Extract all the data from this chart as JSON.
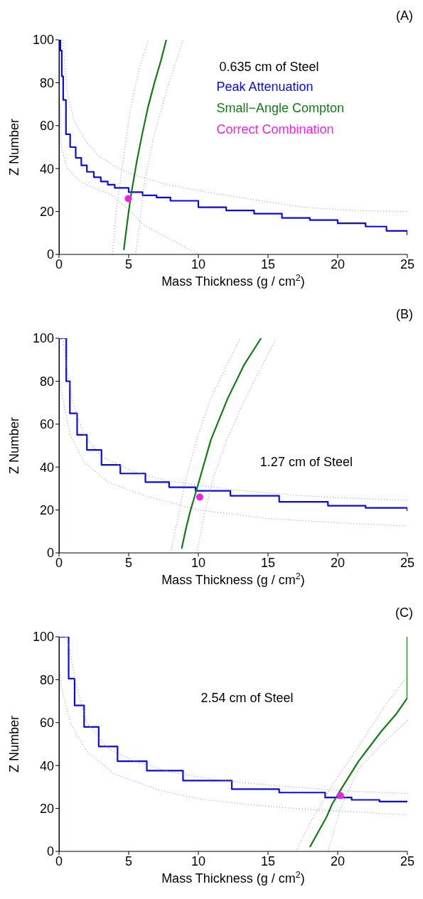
{
  "chart_data": [
    {
      "type": "line",
      "title": "(A)",
      "xlabel": "Mass Thickness (g / cm$^{2}$)",
      "ylabel": "Z Number",
      "xlim": [
        0,
        25
      ],
      "xticks": [
        0,
        5,
        10,
        15,
        20,
        25
      ],
      "ylim": [
        0,
        100
      ],
      "yticks": [
        0,
        20,
        40,
        60,
        80,
        100
      ],
      "annotations": [
        "0.635 cm of Steel"
      ],
      "legend": "top right",
      "series": [
        {
          "name": "Peak Attenuation",
          "type": "step",
          "color": "#0a0ae6",
          "x": [
            0,
            0,
            0.05,
            0.1,
            0.2,
            0.3,
            0.5,
            0.8,
            1.2,
            1.6,
            2,
            2.5,
            3,
            3.5,
            4,
            5,
            6,
            7,
            8,
            10,
            12,
            14,
            16,
            18,
            20,
            22,
            23.5,
            25
          ],
          "values": [
            0,
            100,
            100,
            95,
            83,
            72,
            56,
            50,
            45,
            41.5,
            38.5,
            36,
            34,
            32.5,
            31,
            29,
            27.5,
            26.5,
            25,
            22,
            20.5,
            19,
            17,
            16,
            14.5,
            13,
            11,
            9
          ]
        },
        {
          "type": "line",
          "line_style": "dotted",
          "color": "#9a9ab4",
          "x": [
            0.26,
            0.6,
            1.1,
            2,
            2.85,
            4,
            5.4,
            7.5,
            10.6,
            14,
            17.5,
            21,
            25
          ],
          "values": [
            100,
            75,
            62,
            52,
            46,
            41,
            37,
            33,
            29,
            25.5,
            22,
            20.5,
            20
          ]
        },
        {
          "type": "line",
          "line_style": "dotted",
          "color": "#9a9ab4",
          "x": [
            0.1,
            0.17,
            0.6,
            1.5,
            2.5,
            3.7,
            5,
            6,
            8,
            10
          ],
          "values": [
            70,
            50,
            40,
            34,
            31,
            28,
            21,
            14,
            7,
            0
          ]
        },
        {
          "name": "Small−Angle Compton",
          "type": "line",
          "color": "#127c12",
          "x": [
            4.65,
            4.84,
            5,
            5.2,
            5.6,
            6,
            6.4,
            6.85,
            7.3,
            7.7
          ],
          "values": [
            2,
            12,
            20,
            29,
            44,
            57,
            69,
            80,
            90,
            100
          ]
        },
        {
          "type": "line",
          "line_style": "dotted",
          "color": "#9a9ab4",
          "x": [
            3.85,
            4.1,
            4.5,
            5.1,
            5.7,
            6.4
          ],
          "values": [
            0,
            20,
            39,
            67,
            85,
            100
          ]
        },
        {
          "type": "line",
          "line_style": "dotted",
          "color": "#9a9ab4",
          "x": [
            5.5,
            5.8,
            6.1,
            6.8,
            7.8,
            8.9
          ],
          "values": [
            0,
            15,
            32,
            55,
            78,
            100
          ]
        },
        {
          "name": "Correct Combination",
          "type": "scatter",
          "color": "#ee22ee",
          "x": [
            4.97
          ],
          "values": [
            26
          ]
        }
      ]
    },
    {
      "type": "line",
      "title": "(B)",
      "xlabel": "Mass Thickness (g / cm$^{2}$)",
      "ylabel": "Z Number",
      "xlim": [
        0,
        25
      ],
      "xticks": [
        0,
        5,
        10,
        15,
        20,
        25
      ],
      "ylim": [
        0,
        100
      ],
      "yticks": [
        0,
        20,
        40,
        60,
        80,
        100
      ],
      "annotations": [
        "1.27 cm of Steel"
      ],
      "series": [
        {
          "type": "step",
          "color": "#0a0ae6",
          "x": [
            0,
            0,
            0.25,
            0.52,
            0.78,
            1.3,
            2,
            3.05,
            4.4,
            6.2,
            7.9,
            9.8,
            12.3,
            15.8,
            19.3,
            22,
            25
          ],
          "values": [
            0,
            100,
            100,
            80,
            65,
            55,
            48,
            41,
            37,
            33,
            30.6,
            28.9,
            26.6,
            23.8,
            22,
            21,
            19.5
          ]
        },
        {
          "type": "line",
          "line_style": "dotted",
          "color": "#9a9ab4",
          "x": [
            0.3,
            0.45,
            1,
            1.8,
            3,
            5.3,
            7.5,
            10.5,
            14,
            17.5,
            21,
            25
          ],
          "values": [
            100,
            91,
            70,
            55,
            45,
            38,
            34,
            31,
            28.5,
            26.6,
            25.5,
            24.5
          ]
        },
        {
          "type": "line",
          "line_style": "dotted",
          "color": "#9a9ab4",
          "x": [
            0.1,
            0.26,
            0.8,
            1.8,
            3.5,
            6.2,
            10,
            15,
            20,
            25
          ],
          "values": [
            80,
            72,
            55,
            42.5,
            33,
            26.6,
            20,
            16,
            14,
            12.5
          ]
        },
        {
          "type": "line",
          "color": "#127c12",
          "x": [
            8.8,
            9.1,
            9.4,
            9.85,
            10.9,
            12.1,
            13.3,
            14.5
          ],
          "values": [
            2,
            11,
            19,
            28.9,
            52.7,
            71.9,
            87.8,
            100
          ]
        },
        {
          "type": "line",
          "line_style": "dotted",
          "color": "#9a9ab4",
          "x": [
            8,
            8.5,
            9.1,
            10,
            10.9,
            12,
            13
          ],
          "values": [
            0,
            15,
            34.5,
            55,
            72,
            87,
            100
          ]
        },
        {
          "type": "line",
          "line_style": "dotted",
          "color": "#9a9ab4",
          "x": [
            9.9,
            10.4,
            11.1,
            12,
            13.2,
            14.4,
            15.6
          ],
          "values": [
            0,
            17,
            35.7,
            52,
            69.6,
            85,
            100
          ]
        },
        {
          "type": "scatter",
          "color": "#ee22ee",
          "x": [
            10.1
          ],
          "values": [
            26
          ]
        }
      ]
    },
    {
      "type": "line",
      "title": "(C)",
      "xlabel": "Mass Thickness (g / cm$^{2}$)",
      "ylabel": "Z Number",
      "xlim": [
        0,
        25
      ],
      "xticks": [
        0,
        5,
        10,
        15,
        20,
        25
      ],
      "ylim": [
        0,
        100
      ],
      "yticks": [
        0,
        20,
        40,
        60,
        80,
        100
      ],
      "annotations": [
        "2.54 cm of Steel"
      ],
      "series": [
        {
          "type": "step",
          "color": "#0a0ae6",
          "x": [
            0,
            0,
            0.43,
            0.69,
            1.12,
            1.8,
            2.85,
            4.2,
            6.3,
            8.9,
            12.4,
            15.8,
            19.1,
            21,
            23,
            25
          ],
          "values": [
            0,
            100,
            100,
            80.5,
            68,
            58,
            48.9,
            42,
            37.6,
            33,
            29,
            27.4,
            25.1,
            24,
            23.2,
            23
          ]
        },
        {
          "type": "line",
          "line_style": "dotted",
          "color": "#9a9ab4",
          "x": [
            0.5,
            0.78,
            1.2,
            2,
            3.5,
            5.45,
            8,
            10.6,
            14,
            17.6,
            21,
            25
          ],
          "values": [
            100,
            94,
            78,
            60,
            48,
            42,
            37,
            34,
            31.5,
            29.6,
            28,
            27
          ]
        },
        {
          "type": "line",
          "line_style": "dotted",
          "color": "#9a9ab4",
          "x": [
            0.05,
            0.17,
            0.8,
            2,
            4,
            7.2,
            10,
            14,
            18,
            21,
            25
          ],
          "values": [
            85,
            77,
            60,
            46.6,
            36,
            28.5,
            24.5,
            21.5,
            19.5,
            18.5,
            17
          ]
        },
        {
          "type": "line",
          "color": "#127c12",
          "x": [
            18,
            18.6,
            19.2,
            19.6,
            20.3,
            21.5,
            23.1,
            24.2,
            25,
            25
          ],
          "values": [
            2,
            9,
            16,
            22,
            29.6,
            42,
            55.7,
            64,
            71.5,
            100
          ]
        },
        {
          "type": "line",
          "line_style": "dotted",
          "color": "#9a9ab4",
          "x": [
            17,
            18,
            19.6,
            21.5,
            23.2,
            24.8,
            25
          ],
          "values": [
            0,
            13,
            30.8,
            48.9,
            66,
            80,
            81
          ]
        },
        {
          "type": "line",
          "line_style": "dotted",
          "color": "#9a9ab4",
          "x": [
            19.3,
            20.2,
            21.5,
            23.2,
            25
          ],
          "values": [
            0,
            20,
            38.7,
            50,
            61
          ]
        },
        {
          "type": "scatter",
          "color": "#ee22ee",
          "x": [
            20.2
          ],
          "values": [
            26
          ]
        }
      ]
    }
  ]
}
